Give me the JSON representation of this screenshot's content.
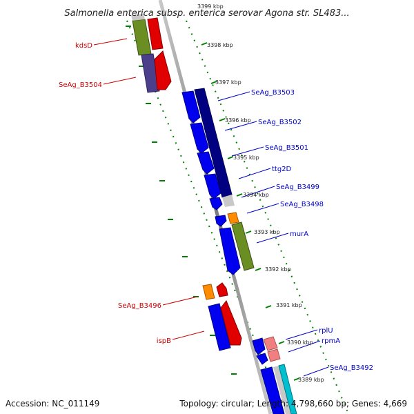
{
  "title": "Salmonella enterica subsp. enterica serovar Agona str. SL483...",
  "footer": {
    "accession": "Accession: NC_011149",
    "summary": "Topology: circular; Length: 4,798,660 bp; Genes: 4,669"
  },
  "colors": {
    "forward_label": "#cc0000",
    "reverse_label": "#0000cc",
    "dot_ring": "#008000",
    "backbone": "#8c8c8c"
  },
  "kbp_ticks": [
    "3399 kbp",
    "3398 kbp",
    "3397 kbp",
    "3396 kbp",
    "3395 kbp",
    "3394 kbp",
    "3393 kbp",
    "3392 kbp",
    "3391 kbp",
    "3390 kbp",
    "3389 kbp"
  ],
  "forward_labels": [
    "kdsD",
    "SeAg_B3504",
    "SeAg_B3496",
    "ispB"
  ],
  "reverse_labels": [
    "SeAg_B3503",
    "SeAg_B3502",
    "SeAg_B3501",
    "ttg2D",
    "SeAg_B3499",
    "SeAg_B3498",
    "murA",
    "rplU",
    "rpmA",
    "SeAg_B3492"
  ]
}
